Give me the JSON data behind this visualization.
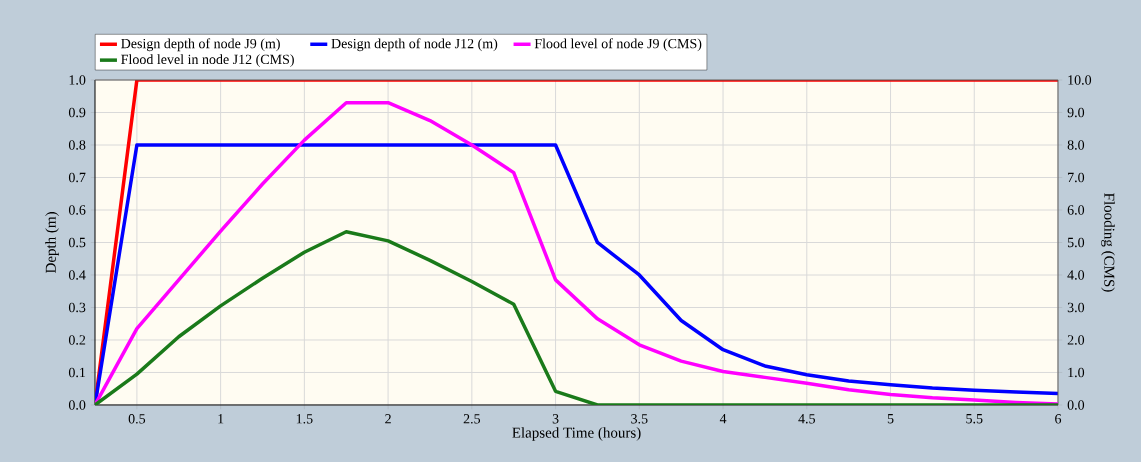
{
  "chart_data": {
    "type": "line",
    "xlabel": "Elapsed Time (hours)",
    "ylabel": "Depth (m)",
    "y2label": "Flooding (CMS)",
    "xlim": [
      0.25,
      6
    ],
    "xticks": [
      0.5,
      1,
      1.5,
      2,
      2.5,
      3,
      3.5,
      4,
      4.5,
      5,
      5.5,
      6
    ],
    "ylim": [
      0,
      1
    ],
    "yticks": [
      {
        "value": 0,
        "label": "0.0"
      },
      {
        "value": 0.1,
        "label": "0.1"
      },
      {
        "value": 0.2,
        "label": "0.2"
      },
      {
        "value": 0.3,
        "label": "0.3"
      },
      {
        "value": 0.4,
        "label": "0.4"
      },
      {
        "value": 0.5,
        "label": "0.5"
      },
      {
        "value": 0.6,
        "label": "0.6"
      },
      {
        "value": 0.7,
        "label": "0.7"
      },
      {
        "value": 0.8,
        "label": "0.8"
      },
      {
        "value": 0.9,
        "label": "0.9"
      },
      {
        "value": 1,
        "label": "1.0"
      }
    ],
    "y2lim": [
      0,
      10
    ],
    "y2ticks": [
      {
        "value": 0,
        "label": "0.0"
      },
      {
        "value": 1,
        "label": "1.0"
      },
      {
        "value": 2,
        "label": "2.0"
      },
      {
        "value": 3,
        "label": "3.0"
      },
      {
        "value": 4,
        "label": "4.0"
      },
      {
        "value": 5,
        "label": "5.0"
      },
      {
        "value": 6,
        "label": "6.0"
      },
      {
        "value": 7,
        "label": "7.0"
      },
      {
        "value": 8,
        "label": "8.0"
      },
      {
        "value": 9,
        "label": "9.0"
      },
      {
        "value": 10,
        "label": "10.0"
      }
    ],
    "grid": true,
    "legend": "top",
    "line_style": "solid",
    "series": [
      {
        "name": "Design depth of node J9 (m)",
        "color": "#ff0000",
        "x": [
          0.25,
          0.5,
          6
        ],
        "values": [
          0,
          1,
          1
        ]
      },
      {
        "name": "Design depth of node J12 (m)",
        "color": "#0000ff",
        "x": [
          0.25,
          0.5,
          3,
          3.25,
          3.5,
          3.75,
          4,
          4.25,
          4.5,
          4.75,
          5,
          5.25,
          5.5,
          5.75,
          6
        ],
        "values": [
          0,
          0.8,
          0.8,
          0.5,
          0.4,
          0.26,
          0.17,
          0.12,
          0.093,
          0.074,
          0.062,
          0.052,
          0.045,
          0.04,
          0.035
        ]
      },
      {
        "name": "Flood level of node J9 (CMS)",
        "color": "#ff00ff",
        "axis": "y2",
        "x": [
          0.25,
          0.5,
          0.75,
          1,
          1.25,
          1.5,
          1.75,
          2,
          2.25,
          2.5,
          2.75,
          3,
          3.25,
          3.5,
          3.75,
          4,
          4.25,
          4.5,
          4.75,
          5,
          5.25,
          5.5,
          5.75,
          6
        ],
        "values": [
          0,
          2.35,
          3.85,
          5.35,
          6.8,
          8.15,
          9.3,
          9.3,
          8.75,
          8.0,
          7.15,
          3.85,
          2.65,
          1.85,
          1.35,
          1.03,
          0.85,
          0.67,
          0.47,
          0.32,
          0.22,
          0.15,
          0.08,
          0.03
        ]
      },
      {
        "name": "Flood level in node J12  (CMS)",
        "color": "#1a7a1a",
        "axis": "y2",
        "x": [
          0.25,
          0.5,
          0.75,
          1,
          1.25,
          1.5,
          1.75,
          2,
          2.25,
          2.5,
          2.75,
          3,
          3.25,
          3.5,
          4,
          4.5,
          5,
          5.5,
          6
        ],
        "values": [
          0,
          0.95,
          2.1,
          3.05,
          3.9,
          4.7,
          5.33,
          5.05,
          4.45,
          3.8,
          3.1,
          0.42,
          0,
          0,
          0,
          0,
          0,
          0,
          0
        ]
      }
    ]
  }
}
